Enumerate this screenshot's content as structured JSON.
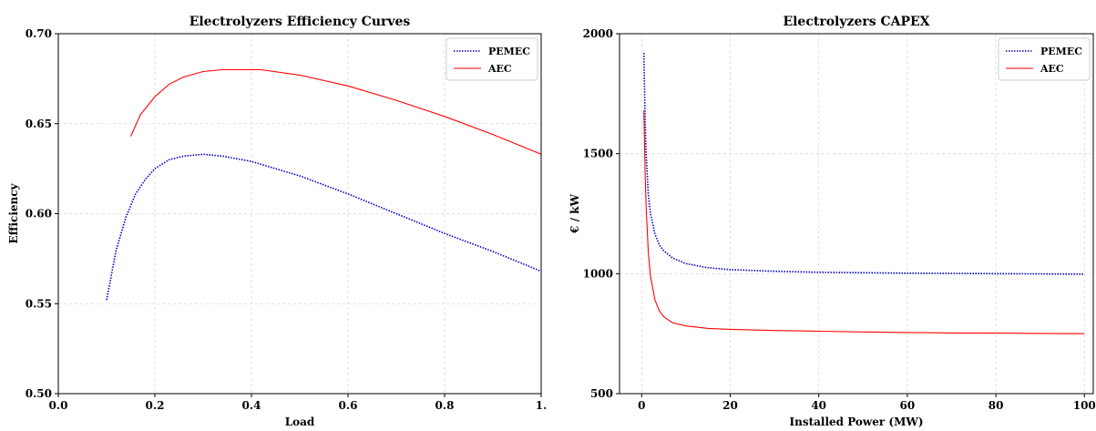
{
  "chart_data": [
    {
      "type": "line",
      "title": "Electrolyzers Efficiency Curves",
      "xlabel": "Load",
      "ylabel": "Efficiency",
      "xlim": [
        0.0,
        1.0
      ],
      "ylim": [
        0.5,
        0.7
      ],
      "xticks": [
        0.0,
        0.2,
        0.4,
        0.6,
        0.8,
        1.0
      ],
      "xtick_labels": [
        "0.0",
        "0.2",
        "0.4",
        "0.6",
        "0.8",
        "1."
      ],
      "yticks": [
        0.5,
        0.55,
        0.6,
        0.65,
        0.7
      ],
      "ytick_labels": [
        "0.50",
        "0.55",
        "0.60",
        "0.65",
        "0.70"
      ],
      "grid": true,
      "legend_position": "top-right",
      "series": [
        {
          "name": "PEMEC",
          "color": "#0000cc",
          "style": "dotted",
          "x": [
            0.1,
            0.12,
            0.14,
            0.16,
            0.18,
            0.2,
            0.23,
            0.26,
            0.3,
            0.34,
            0.4,
            0.5,
            0.6,
            0.7,
            0.8,
            0.9,
            1.0
          ],
          "y": [
            0.552,
            0.58,
            0.598,
            0.611,
            0.619,
            0.625,
            0.63,
            0.632,
            0.633,
            0.632,
            0.629,
            0.621,
            0.611,
            0.6,
            0.589,
            0.579,
            0.568
          ]
        },
        {
          "name": "AEC",
          "color": "#ff0000",
          "style": "solid",
          "x": [
            0.15,
            0.17,
            0.2,
            0.23,
            0.26,
            0.3,
            0.34,
            0.38,
            0.42,
            0.5,
            0.6,
            0.7,
            0.8,
            0.9,
            1.0
          ],
          "y": [
            0.643,
            0.655,
            0.665,
            0.672,
            0.676,
            0.679,
            0.68,
            0.68,
            0.68,
            0.677,
            0.671,
            0.663,
            0.654,
            0.644,
            0.633
          ]
        }
      ]
    },
    {
      "type": "line",
      "title": "Electrolyzers CAPEX",
      "xlabel": "Installed Power (MW)",
      "ylabel": "€ / kW",
      "xlim": [
        -5,
        102
      ],
      "ylim": [
        500,
        2000
      ],
      "xticks": [
        0,
        20,
        40,
        60,
        80,
        100
      ],
      "xtick_labels": [
        "0",
        "20",
        "40",
        "60",
        "80",
        "100"
      ],
      "yticks": [
        500,
        1000,
        1500,
        2000
      ],
      "ytick_labels": [
        "500",
        "1000",
        "1500",
        "2000"
      ],
      "grid": true,
      "legend_position": "top-right",
      "series": [
        {
          "name": "PEMEC",
          "color": "#0000cc",
          "style": "dotted",
          "x": [
            0.5,
            0.8,
            1,
            1.5,
            2,
            3,
            4,
            5,
            7,
            10,
            15,
            20,
            30,
            40,
            50,
            60,
            70,
            80,
            90,
            100
          ],
          "y": [
            1920,
            1620,
            1500,
            1330,
            1250,
            1165,
            1120,
            1095,
            1065,
            1042,
            1025,
            1017,
            1010,
            1006,
            1004,
            1002,
            1001,
            1000,
            999,
            998
          ]
        },
        {
          "name": "AEC",
          "color": "#ff0000",
          "style": "solid",
          "x": [
            0.5,
            0.8,
            1,
            1.5,
            2,
            3,
            4,
            5,
            7,
            10,
            15,
            20,
            30,
            40,
            50,
            60,
            70,
            80,
            90,
            100
          ],
          "y": [
            1680,
            1400,
            1280,
            1090,
            990,
            890,
            845,
            820,
            795,
            782,
            772,
            768,
            763,
            760,
            757,
            755,
            753,
            752,
            751,
            750
          ]
        }
      ]
    }
  ]
}
